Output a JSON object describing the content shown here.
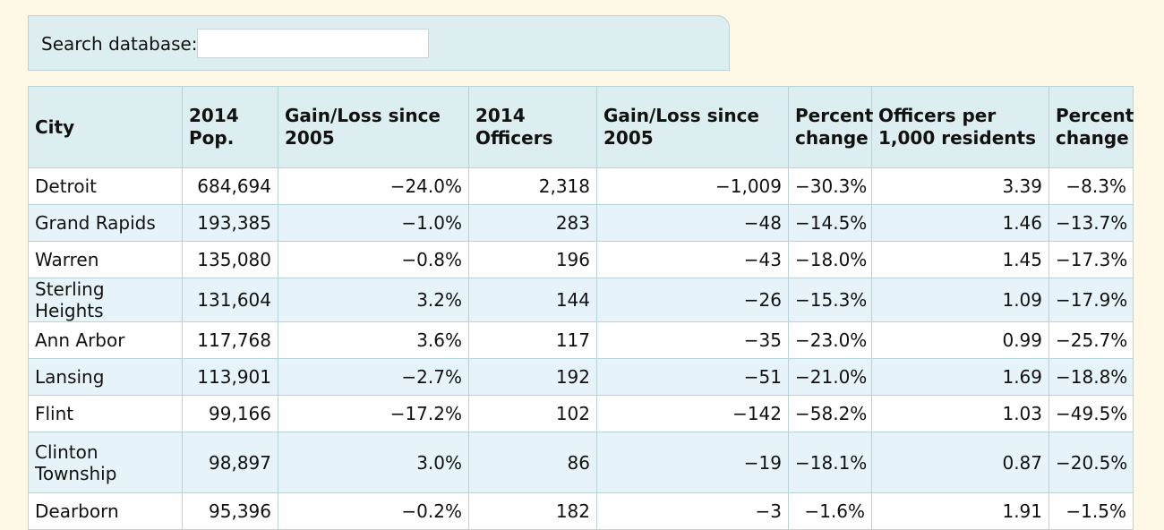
{
  "search": {
    "label": "Search database:",
    "value": "",
    "placeholder": ""
  },
  "table": {
    "headers": [
      "City",
      "2014 Pop.",
      "Gain/Loss since 2005",
      "2014 Officers",
      "Gain/Loss since 2005",
      "Percent change",
      "Officers per 1,000 residents",
      "Percent change"
    ],
    "rows": [
      [
        "Detroit",
        "684,694",
        "−24.0%",
        "2,318",
        "−1,009",
        "−30.3%",
        "3.39",
        "−8.3%"
      ],
      [
        "Grand Rapids",
        "193,385",
        "−1.0%",
        "283",
        "−48",
        "−14.5%",
        "1.46",
        "−13.7%"
      ],
      [
        "Warren",
        "135,080",
        "−0.8%",
        "196",
        "−43",
        "−18.0%",
        "1.45",
        "−17.3%"
      ],
      [
        "Sterling Heights",
        "131,604",
        "3.2%",
        "144",
        "−26",
        "−15.3%",
        "1.09",
        "−17.9%"
      ],
      [
        "Ann Arbor",
        "117,768",
        "3.6%",
        "117",
        "−35",
        "−23.0%",
        "0.99",
        "−25.7%"
      ],
      [
        "Lansing",
        "113,901",
        "−2.7%",
        "192",
        "−51",
        "−21.0%",
        "1.69",
        "−18.8%"
      ],
      [
        "Flint",
        "99,166",
        "−17.2%",
        "102",
        "−142",
        "−58.2%",
        "1.03",
        "−49.5%"
      ],
      [
        "Clinton Township",
        "98,897",
        "3.0%",
        "86",
        "−19",
        "−18.1%",
        "0.87",
        "−20.5%"
      ],
      [
        "Dearborn",
        "95,396",
        "−0.2%",
        "182",
        "−3",
        "−1.6%",
        "1.91",
        "−1.5%"
      ]
    ]
  },
  "colors": {
    "page_background": "#fdf9e6",
    "header_background": "#ddeef0",
    "row_stripe": "#e6f3f8",
    "border": "#b8d4d9"
  }
}
